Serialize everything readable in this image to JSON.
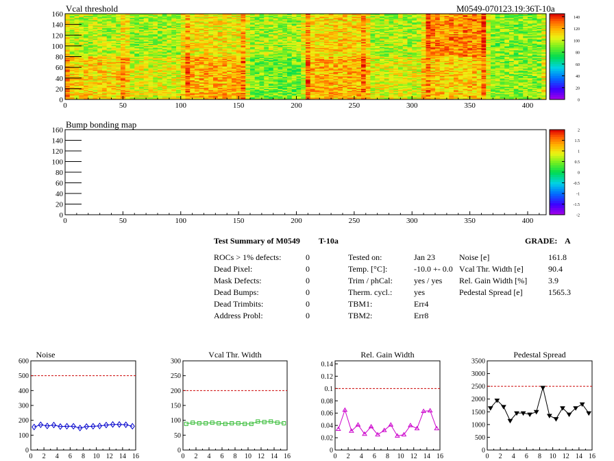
{
  "top_map": {
    "title": "Vcal threshold",
    "module_label": "M0549-070123.19:36T-10a",
    "xlim": [
      0,
      416
    ],
    "ylim": [
      0,
      160
    ],
    "x_ticks": [
      "0",
      "50",
      "100",
      "150",
      "200",
      "250",
      "300",
      "350",
      "400"
    ],
    "y_ticks": [
      "0",
      "20",
      "40",
      "60",
      "80",
      "100",
      "120",
      "140",
      "160"
    ],
    "color_scale": {
      "ticks": [
        "0",
        "20",
        "40",
        "60",
        "80",
        "100",
        "120",
        "140"
      ],
      "range": [
        0,
        145
      ]
    }
  },
  "bump_map": {
    "title": "Bump bonding map",
    "xlim": [
      0,
      416
    ],
    "ylim": [
      0,
      160
    ],
    "x_ticks": [
      "0",
      "50",
      "100",
      "150",
      "200",
      "250",
      "300",
      "350",
      "400"
    ],
    "y_ticks": [
      "0",
      "20",
      "40",
      "60",
      "80",
      "100",
      "120",
      "140",
      "160"
    ],
    "color_scale": {
      "ticks": [
        "-2",
        "-1.5",
        "-1",
        "-0.5",
        "0",
        "0.5",
        "1",
        "1.5",
        "2"
      ],
      "range": [
        -2,
        2
      ]
    }
  },
  "summary": {
    "title": "Test Summary of M0549",
    "temp_code": "T-10a",
    "grade_label": "GRADE:",
    "grade": "A",
    "defects": [
      {
        "label": "ROCs > 1% defects:",
        "value": "0"
      },
      {
        "label": "Dead Pixel:",
        "value": "0"
      },
      {
        "label": "Mask Defects:",
        "value": "0"
      },
      {
        "label": "Dead Bumps:",
        "value": "0"
      },
      {
        "label": "Dead Trimbits:",
        "value": "0"
      },
      {
        "label": "Address Probl:",
        "value": "0"
      }
    ],
    "conditions": [
      {
        "label": "Tested on:",
        "value": "Jan 23"
      },
      {
        "label": "Temp. [°C]:",
        "value": "-10.0 +- 0.0"
      },
      {
        "label": "Trim / phCal:",
        "value": "yes / yes"
      },
      {
        "label": "Therm. cycl.:",
        "value": "yes"
      },
      {
        "label": "TBM1:",
        "value": "Err4"
      },
      {
        "label": "TBM2:",
        "value": "Err8"
      }
    ],
    "results": [
      {
        "label": "Noise [e]",
        "value": "161.8"
      },
      {
        "label": "Vcal Thr. Width [e]",
        "value": "90.4"
      },
      {
        "label": "Rel. Gain Width [%]",
        "value": "3.9"
      },
      {
        "label": "Pedestal Spread [e]",
        "value": "1565.3"
      }
    ]
  },
  "chart_data": [
    {
      "type": "heatmap",
      "title": "Vcal threshold",
      "xlim": [
        0,
        416
      ],
      "ylim": [
        0,
        160
      ],
      "roc_grid": {
        "columns": 8,
        "rows": 2
      },
      "roc_mean_vcal": [
        [
          98,
          95,
          108,
          95,
          112,
          96,
          125,
          90
        ],
        [
          112,
          104,
          118,
          88,
          118,
          104,
          114,
          92
        ]
      ],
      "z_range": [
        0,
        145
      ]
    },
    {
      "type": "heatmap",
      "title": "Bump bonding map",
      "xlim": [
        0,
        416
      ],
      "ylim": [
        0,
        160
      ],
      "z_range": [
        -2,
        2
      ],
      "values": []
    },
    {
      "type": "scatter",
      "title": "Noise",
      "xlim": [
        0,
        16
      ],
      "ylim": [
        0,
        600
      ],
      "x_ticks": [
        "0",
        "2",
        "4",
        "6",
        "8",
        "10",
        "12",
        "14",
        "16"
      ],
      "y_ticks": [
        "0",
        "100",
        "200",
        "300",
        "400",
        "500",
        "600"
      ],
      "threshold": 500,
      "color": "#0000cc",
      "marker": "diamond",
      "x": [
        0.5,
        1.5,
        2.5,
        3.5,
        4.5,
        5.5,
        6.5,
        7.5,
        8.5,
        9.5,
        10.5,
        11.5,
        12.5,
        13.5,
        14.5,
        15.5
      ],
      "y": [
        155,
        170,
        162,
        168,
        158,
        160,
        160,
        148,
        158,
        160,
        162,
        168,
        172,
        172,
        170,
        160
      ]
    },
    {
      "type": "scatter",
      "title": "Vcal Thr. Width",
      "xlim": [
        0,
        16
      ],
      "ylim": [
        0,
        300
      ],
      "x_ticks": [
        "0",
        "2",
        "4",
        "6",
        "8",
        "10",
        "12",
        "14",
        "16"
      ],
      "y_ticks": [
        "0",
        "50",
        "100",
        "150",
        "200",
        "250",
        "300"
      ],
      "threshold": 200,
      "color": "#33bb33",
      "marker": "square",
      "x": [
        0.5,
        1.5,
        2.5,
        3.5,
        4.5,
        5.5,
        6.5,
        7.5,
        8.5,
        9.5,
        10.5,
        11.5,
        12.5,
        13.5,
        14.5,
        15.5
      ],
      "y": [
        88,
        92,
        90,
        90,
        92,
        90,
        88,
        90,
        90,
        88,
        88,
        96,
        94,
        96,
        92,
        90
      ]
    },
    {
      "type": "line",
      "title": "Rel. Gain Width",
      "xlim": [
        0,
        16
      ],
      "ylim": [
        0,
        0.145
      ],
      "x_ticks": [
        "0",
        "2",
        "4",
        "6",
        "8",
        "10",
        "12",
        "14",
        "16"
      ],
      "y_ticks": [
        "0",
        "0.02",
        "0.04",
        "0.06",
        "0.08",
        "0.1",
        "0.12",
        "0.14"
      ],
      "threshold": 0.1,
      "color": "#cc00cc",
      "marker": "triangle",
      "x": [
        0.5,
        1.5,
        2.5,
        3.5,
        4.5,
        5.5,
        6.5,
        7.5,
        8.5,
        9.5,
        10.5,
        11.5,
        12.5,
        13.5,
        14.5,
        15.5
      ],
      "y": [
        0.034,
        0.065,
        0.031,
        0.041,
        0.026,
        0.038,
        0.025,
        0.032,
        0.041,
        0.023,
        0.025,
        0.04,
        0.035,
        0.063,
        0.064,
        0.035
      ]
    },
    {
      "type": "line",
      "title": "Pedestal Spread",
      "xlim": [
        0,
        16
      ],
      "ylim": [
        0,
        3500
      ],
      "x_ticks": [
        "0",
        "2",
        "4",
        "6",
        "8",
        "10",
        "12",
        "14",
        "16"
      ],
      "y_ticks": [
        "0",
        "500",
        "1000",
        "1500",
        "2000",
        "2500",
        "3000",
        "3500"
      ],
      "threshold": 2500,
      "color": "#000000",
      "marker": "triangle-down",
      "x": [
        0.5,
        1.5,
        2.5,
        3.5,
        4.5,
        5.5,
        6.5,
        7.5,
        8.5,
        9.5,
        10.5,
        11.5,
        12.5,
        13.5,
        14.5,
        15.5
      ],
      "y": [
        1650,
        1950,
        1700,
        1150,
        1450,
        1450,
        1400,
        1500,
        2450,
        1350,
        1220,
        1650,
        1400,
        1650,
        1800,
        1450
      ]
    }
  ]
}
